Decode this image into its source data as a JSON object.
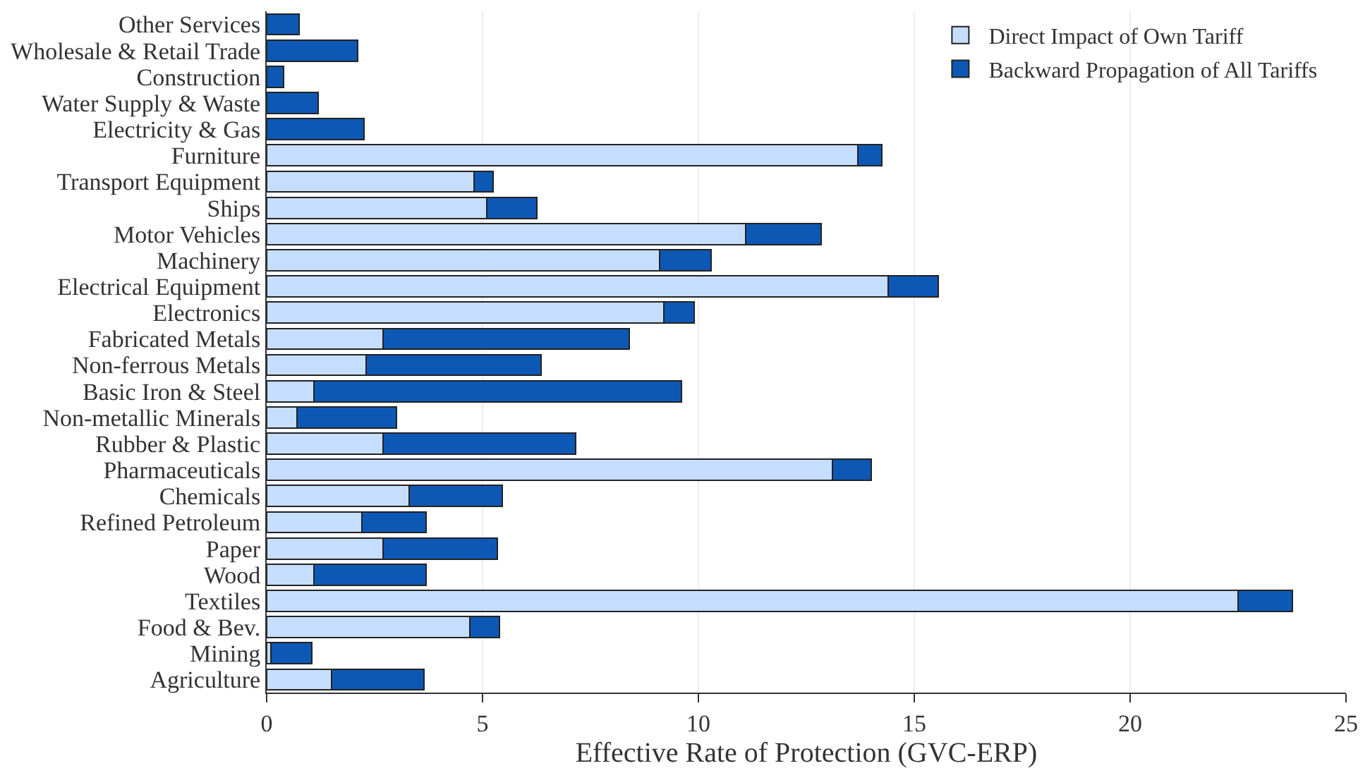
{
  "chart_data": {
    "type": "bar",
    "orientation": "horizontal",
    "stacked": true,
    "xlabel": "Effective Rate of Protection (GVC-ERP)",
    "categories": [
      "Other Services",
      "Wholesale & Retail Trade",
      "Construction",
      "Water Supply & Waste",
      "Electricity & Gas",
      "Furniture",
      "Transport Equipment",
      "Ships",
      "Motor Vehicles",
      "Machinery",
      "Electrical Equipment",
      "Electronics",
      "Fabricated Metals",
      "Non-ferrous Metals",
      "Basic Iron & Steel",
      "Non-metallic Minerals",
      "Rubber & Plastic",
      "Pharmaceuticals",
      "Chemicals",
      "Refined Petroleum",
      "Paper",
      "Wood",
      "Textiles",
      "Food & Bev.",
      "Mining",
      "Agriculture"
    ],
    "series": [
      {
        "name": "Direct Impact of Own Tariff",
        "color": "#c6defd",
        "values": [
          0,
          0,
          0,
          0,
          0,
          13.7,
          4.8,
          5.1,
          11.1,
          9.1,
          14.4,
          9.2,
          2.7,
          2.3,
          1.1,
          0.7,
          2.7,
          13.1,
          3.3,
          2.2,
          2.7,
          1.1,
          22.5,
          4.7,
          0.1,
          1.5
        ]
      },
      {
        "name": "Backward Propagation of All Tariffs",
        "color": "#0e58b5",
        "values": [
          0.75,
          2.1,
          0.4,
          1.2,
          2.25,
          0.55,
          0.45,
          1.15,
          1.75,
          1.2,
          1.15,
          0.7,
          5.7,
          4.05,
          8.5,
          2.3,
          4.45,
          0.9,
          2.15,
          1.5,
          2.65,
          2.6,
          1.25,
          0.7,
          0.95,
          2.15
        ]
      }
    ],
    "xlim": [
      0,
      25
    ],
    "xticks": [
      0,
      5,
      10,
      15,
      20,
      25
    ],
    "grid": "x",
    "legend": "top right"
  }
}
